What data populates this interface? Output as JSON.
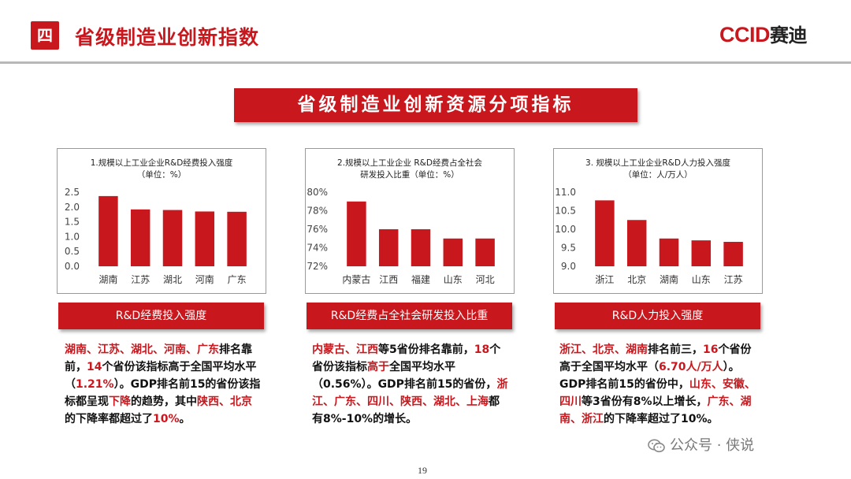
{
  "header": {
    "section_badge": "四",
    "title": "省级制造业创新指数",
    "logo_text": "CCID",
    "logo_cn": "赛迪"
  },
  "banner": "省级制造业创新资源分项指标",
  "colors": {
    "accent": "#c8181e"
  },
  "chart_data": [
    {
      "type": "bar",
      "title_lines": [
        "1.规模以上工业企业R&D经费投入强度",
        "（单位：%）"
      ],
      "categories": [
        "湖南",
        "江苏",
        "湖北",
        "河南",
        "广东"
      ],
      "values": [
        2.37,
        1.92,
        1.9,
        1.85,
        1.84
      ],
      "ylim": [
        0,
        2.5
      ],
      "yticks": [
        "0.0",
        "0.5",
        "1.0",
        "1.5",
        "2.0",
        "2.5"
      ],
      "ytick_values": [
        0,
        0.5,
        1.0,
        1.5,
        2.0,
        2.5
      ],
      "grid": false,
      "legend": "none"
    },
    {
      "type": "bar",
      "title_lines": [
        "2.规模以上工业企业 R&D经费占全社会",
        "研发投入比重（单位：%）"
      ],
      "categories": [
        "内蒙古",
        "江西",
        "福建",
        "山东",
        "河北"
      ],
      "values": [
        79,
        76,
        76,
        75,
        75
      ],
      "ylim": [
        72,
        80
      ],
      "yticks": [
        "72%",
        "74%",
        "76%",
        "78%",
        "80%"
      ],
      "ytick_values": [
        72,
        74,
        76,
        78,
        80
      ],
      "grid": false,
      "legend": "none"
    },
    {
      "type": "bar",
      "title_lines": [
        "3. 规模以上工业企业R&D人力投入强度",
        "（单位：人/万人）"
      ],
      "categories": [
        "浙江",
        "北京",
        "湖南",
        "山东",
        "江苏"
      ],
      "values": [
        10.78,
        10.25,
        9.75,
        9.7,
        9.66
      ],
      "ylim": [
        9.0,
        11.0
      ],
      "yticks": [
        "9.0",
        "9.5",
        "10.0",
        "10.5",
        "11.0"
      ],
      "ytick_values": [
        9.0,
        9.5,
        10.0,
        10.5,
        11.0
      ],
      "grid": false,
      "legend": "none"
    }
  ],
  "panels": [
    {
      "label": "R&D经费投入强度",
      "desc": [
        {
          "t": "湖南、江苏、湖北、河南、广东",
          "red": true
        },
        {
          "t": "排名靠前，",
          "red": false
        },
        {
          "t": "14",
          "red": true
        },
        {
          "t": "个省份该指标高于全国平均水平（",
          "red": false
        },
        {
          "t": "1.21%",
          "red": true
        },
        {
          "t": "）。GDP排名前15的省份该指标都呈现",
          "red": false
        },
        {
          "t": "下降",
          "red": true
        },
        {
          "t": "的趋势，其中",
          "red": false
        },
        {
          "t": "陕西、北京",
          "red": true
        },
        {
          "t": "的下降率都超过了",
          "red": false
        },
        {
          "t": "10%",
          "red": true
        },
        {
          "t": "。",
          "red": false
        }
      ]
    },
    {
      "label": "R&D经费占全社会研发投入比重",
      "desc": [
        {
          "t": "内蒙古、江西",
          "red": true
        },
        {
          "t": "等5省份排名靠前，",
          "red": false
        },
        {
          "t": "18",
          "red": true
        },
        {
          "t": "个省份该指标",
          "red": false
        },
        {
          "t": "高于",
          "red": true
        },
        {
          "t": "全国平均水平（0.56%）。GDP排名前15的省份，",
          "red": false
        },
        {
          "t": "浙江、广东、四川、陕西、湖北、上海",
          "red": true
        },
        {
          "t": "都有8%-10%的增长。",
          "red": false
        }
      ]
    },
    {
      "label": "R&D人力投入强度",
      "desc": [
        {
          "t": "浙江、北京、湖南",
          "red": true
        },
        {
          "t": "排名前三，",
          "red": false
        },
        {
          "t": "16",
          "red": true
        },
        {
          "t": "个省份高于全国平均水平（",
          "red": false
        },
        {
          "t": "6.70人/万人",
          "red": true
        },
        {
          "t": "）。GDP排名前15的省份中，",
          "red": false
        },
        {
          "t": "山东、安徽、四川",
          "red": true
        },
        {
          "t": "等3省份有8%以上增长，",
          "red": false
        },
        {
          "t": "广东、湖南、浙江",
          "red": true
        },
        {
          "t": "的下降率超过了10%。",
          "red": false
        }
      ]
    }
  ],
  "page_number": "19",
  "watermark": "公众号 · 侠说"
}
